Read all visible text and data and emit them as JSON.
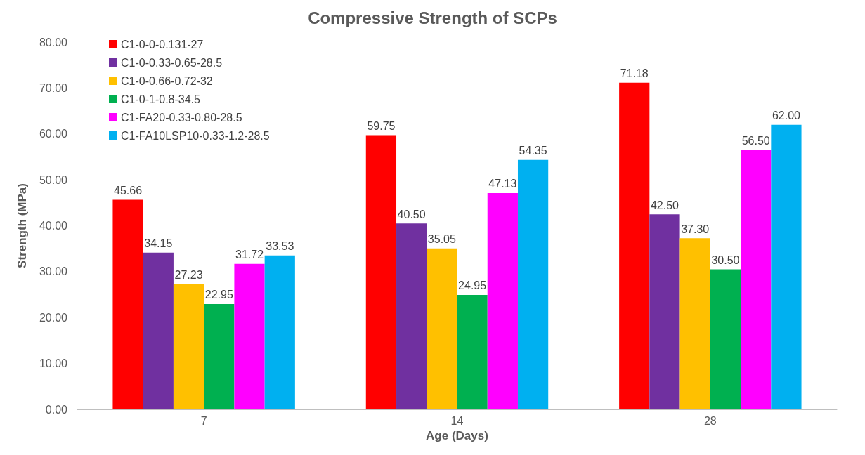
{
  "chart_data": {
    "type": "bar",
    "title": "Compressive Strength of SCPs",
    "xlabel": "Age (Days)",
    "ylabel": "Strength (MPa)",
    "categories": [
      "7",
      "14",
      "28"
    ],
    "series": [
      {
        "name": "C1-0-0-0.131-27",
        "color": "#ff0000",
        "values": [
          45.66,
          59.75,
          71.18
        ],
        "value_labels": [
          "45.66",
          "59.75",
          "71.18"
        ]
      },
      {
        "name": "C1-0-0.33-0.65-28.5",
        "color": "#7030a0",
        "values": [
          34.15,
          40.5,
          42.5
        ],
        "value_labels": [
          "34.15",
          "40.50",
          "42.50"
        ]
      },
      {
        "name": "C1-0-0.66-0.72-32",
        "color": "#ffc000",
        "values": [
          27.23,
          35.05,
          37.3
        ],
        "value_labels": [
          "27.23",
          "35.05",
          "37.30"
        ]
      },
      {
        "name": "C1-0-1-0.8-34.5",
        "color": "#00b050",
        "values": [
          22.95,
          24.95,
          30.5
        ],
        "value_labels": [
          "22.95",
          "24.95",
          "30.50"
        ]
      },
      {
        "name": "C1-FA20-0.33-0.80-28.5",
        "color": "#ff00ff",
        "values": [
          31.72,
          47.13,
          56.5
        ],
        "value_labels": [
          "31.72",
          "47.13",
          "56.50"
        ]
      },
      {
        "name": "C1-FA10LSP10-0.33-1.2-28.5",
        "color": "#00b0f0",
        "values": [
          33.53,
          54.35,
          62
        ],
        "value_labels": [
          "33.53",
          "54.35",
          "62.00"
        ]
      }
    ],
    "ylim": [
      0,
      80
    ],
    "yticks": [
      {
        "value": 0,
        "label": "0.00"
      },
      {
        "value": 10,
        "label": "10.00"
      },
      {
        "value": 20,
        "label": "20.00"
      },
      {
        "value": 30,
        "label": "30.00"
      },
      {
        "value": 40,
        "label": "40.00"
      },
      {
        "value": 50,
        "label": "50.00"
      },
      {
        "value": 60,
        "label": "60.00"
      },
      {
        "value": 70,
        "label": "70.00"
      },
      {
        "value": 80,
        "label": "80.00"
      }
    ],
    "grid": false,
    "legend": "top left"
  }
}
